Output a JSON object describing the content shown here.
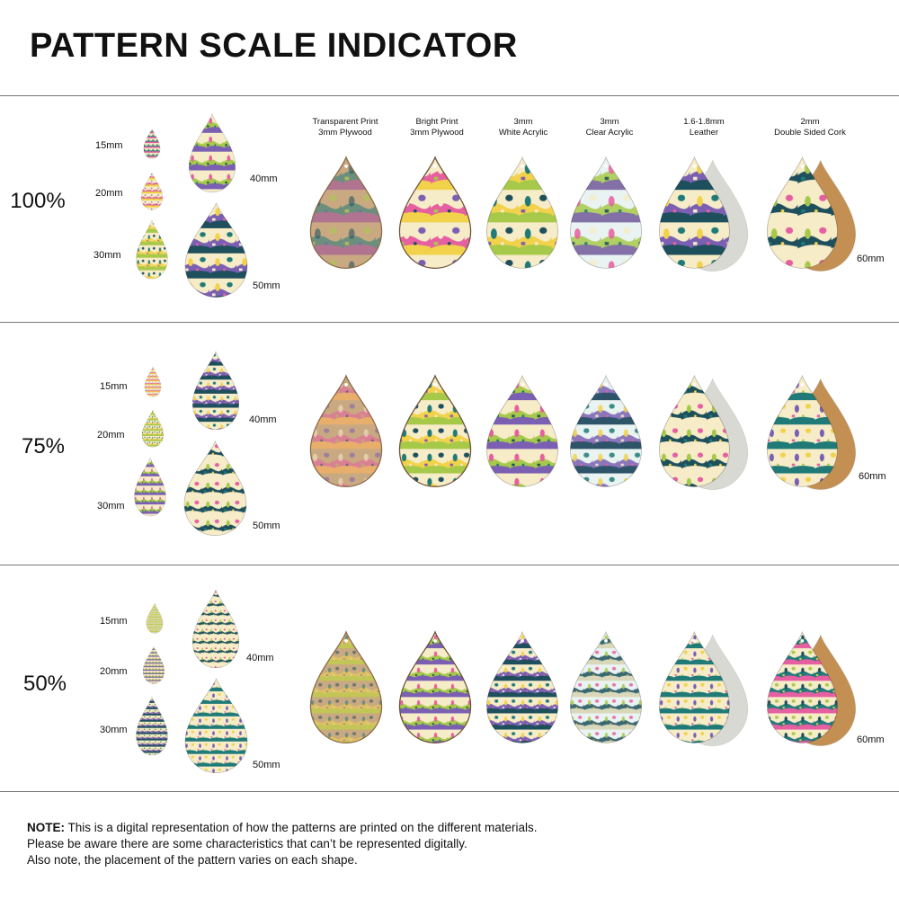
{
  "title": "PATTERN SCALE INDICATOR",
  "materials": [
    {
      "line1": "Transparent Print",
      "line2": "3mm Plywood"
    },
    {
      "line1": "Bright Print",
      "line2": "3mm Plywood"
    },
    {
      "line1": "3mm",
      "line2": "White Acrylic"
    },
    {
      "line1": "3mm",
      "line2": "Clear Acrylic"
    },
    {
      "line1": "1.6-1.8mm",
      "line2": "Leather"
    },
    {
      "line1": "2mm",
      "line2": "Double Sided Cork"
    }
  ],
  "sections": [
    {
      "scale": "100%",
      "sizes": [
        "15mm",
        "20mm",
        "30mm",
        "40mm",
        "50mm"
      ],
      "large_size": "60mm"
    },
    {
      "scale": "75%",
      "sizes": [
        "15mm",
        "20mm",
        "30mm",
        "40mm",
        "50mm"
      ],
      "large_size": "60mm"
    },
    {
      "scale": "50%",
      "sizes": [
        "15mm",
        "20mm",
        "30mm",
        "40mm",
        "50mm"
      ],
      "large_size": "60mm"
    }
  ],
  "note": {
    "label": "NOTE:",
    "line1": "This is a digital representation of how the patterns are printed on the different materials.",
    "line2": "Please be aware there are some characteristics that can’t be represented digitally.",
    "line3": "Also note, the placement of the pattern varies on each shape."
  },
  "colors": {
    "teal": "#1f7a78",
    "dark_teal": "#1d4f5c",
    "pink": "#e65fa1",
    "yellow": "#f2d24b",
    "lime": "#a7c94a",
    "purple": "#7a5fb3",
    "cream": "#f6ecc8",
    "leather": "#d9d9d4",
    "cork": "#c48f52"
  }
}
